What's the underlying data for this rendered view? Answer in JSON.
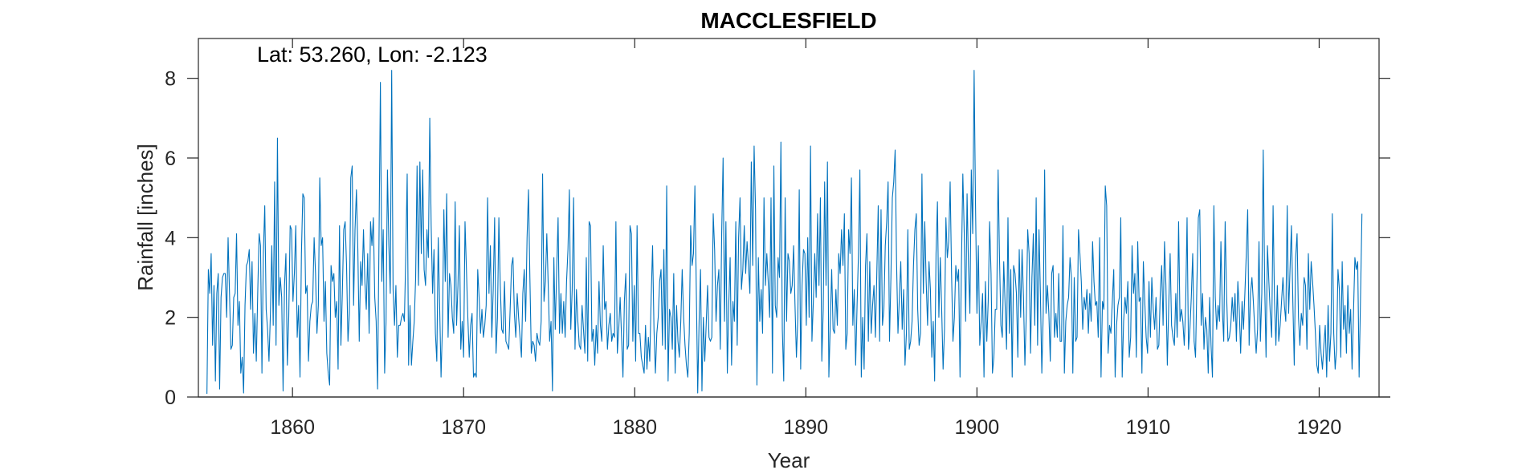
{
  "chart_data": {
    "type": "line",
    "title": "MACCLESFIELD",
    "xlabel": "Year",
    "ylabel": "Rainfall [inches]",
    "annotation": "Lat: 53.260, Lon: -2.123",
    "xlim": [
      1854.5,
      1923.5
    ],
    "ylim": [
      0,
      9
    ],
    "xticks": [
      1860,
      1870,
      1880,
      1890,
      1900,
      1910,
      1920
    ],
    "yticks": [
      0,
      2,
      4,
      6,
      8
    ],
    "grid": false,
    "legend": "none",
    "start_year": 1855,
    "end_year": 1922.5,
    "series": [
      {
        "name": "",
        "color": "#0072BD",
        "values": [
          0.08,
          3.2,
          2.6,
          3.6,
          1.3,
          2.8,
          0.4,
          2.6,
          3.1,
          0.2,
          2.5,
          3.0,
          3.1,
          3.1,
          2.0,
          4.0,
          2.6,
          1.2,
          1.3,
          2.5,
          2.6,
          4.1,
          1.8,
          2.4,
          0.6,
          1.0,
          0.1,
          2.3,
          3.3,
          3.4,
          3.7,
          2.2,
          3.4,
          1.1,
          2.1,
          0.9,
          2.6,
          4.1,
          3.8,
          0.6,
          3.6,
          4.8,
          2.2,
          1.7,
          0.9,
          2.1,
          3.8,
          1.8,
          5.4,
          1.3,
          6.5,
          2.3,
          3.0,
          2.5,
          0.15,
          2.8,
          3.6,
          0.8,
          2.0,
          4.3,
          4.2,
          2.4,
          3.1,
          4.3,
          1.5,
          2.3,
          0.5,
          3.6,
          5.1,
          5.0,
          2.6,
          2.8,
          0.9,
          1.9,
          2.3,
          2.4,
          4.0,
          3.1,
          1.6,
          2.3,
          5.5,
          3.8,
          4.0,
          1.9,
          2.9,
          1.1,
          0.6,
          0.3,
          3.3,
          2.9,
          3.1,
          2.0,
          2.4,
          0.7,
          4.3,
          1.3,
          2.6,
          4.2,
          4.4,
          3.3,
          1.4,
          2.1,
          5.5,
          5.8,
          2.3,
          4.2,
          5.2,
          3.7,
          1.4,
          3.4,
          2.8,
          4.2,
          2.9,
          2.2,
          3.6,
          1.6,
          4.4,
          3.8,
          4.5,
          2.5,
          1.9,
          0.2,
          3.9,
          7.9,
          2.9,
          4.2,
          0.6,
          1.9,
          5.7,
          3.8,
          2.6,
          8.2,
          2.7,
          1.8,
          2.8,
          1.0,
          1.8,
          1.8,
          2.0,
          2.1,
          1.9,
          3.6,
          5.6,
          0.8,
          2.3,
          0.8,
          1.4,
          1.9,
          3.0,
          5.8,
          2.8,
          5.9,
          3.6,
          5.7,
          3.2,
          2.8,
          4.2,
          3.5,
          7.0,
          4.3,
          2.6,
          3.7,
          1.6,
          0.9,
          4.0,
          2.3,
          0.5,
          1.8,
          4.7,
          2.9,
          5.1,
          1.5,
          3.1,
          2.8,
          2.0,
          1.6,
          4.9,
          1.8,
          2.8,
          4.3,
          1.2,
          1.9,
          1.0,
          4.4,
          3.2,
          2.0,
          1.0,
          1.8,
          2.1,
          0.5,
          0.6,
          0.5,
          3.2,
          2.5,
          1.6,
          2.2,
          1.5,
          1.8,
          2.3,
          5.0,
          2.6,
          3.8,
          1.5,
          2.7,
          4.5,
          1.1,
          2.0,
          4.5,
          2.8,
          1.7,
          1.6,
          2.9,
          1.4,
          1.3,
          1.2,
          2.2,
          3.3,
          3.5,
          2.1,
          1.5,
          2.6,
          2.0,
          1.5,
          1.0,
          2.6,
          3.2,
          1.9,
          4.0,
          5.2,
          3.0,
          1.1,
          1.4,
          1.3,
          0.9,
          1.6,
          1.4,
          1.3,
          1.9,
          5.6,
          2.4,
          2.9,
          4.1,
          2.8,
          1.4,
          1.9,
          0.15,
          3.5,
          1.7,
          3.2,
          4.5,
          1.6,
          2.6,
          1.6,
          2.4,
          1.5,
          2.9,
          3.7,
          5.2,
          1.7,
          2.7,
          5.0,
          1.2,
          2.7,
          1.9,
          1.3,
          1.2,
          2.3,
          1.7,
          1.1,
          3.5,
          0.9,
          4.4,
          4.3,
          1.4,
          1.7,
          0.8,
          1.8,
          1.1,
          2.9,
          1.8,
          1.4,
          3.8,
          2.2,
          2.4,
          1.2,
          1.8,
          2.1,
          1.4,
          1.6,
          1.5,
          4.4,
          1.1,
          1.7,
          2.5,
          1.5,
          0.5,
          2.4,
          3.1,
          1.2,
          1.3,
          4.3,
          4.1,
          1.4,
          2.8,
          0.9,
          4.3,
          1.6,
          1.6,
          1.0,
          0.8,
          0.6,
          1.8,
          0.7,
          1.5,
          0.9,
          2.5,
          3.8,
          1.7,
          0.6,
          1.6,
          2.0,
          2.9,
          3.2,
          1.3,
          3.7,
          1.2,
          5.3,
          0.4,
          2.2,
          2.0,
          1.2,
          3.1,
          0.6,
          2.3,
          1.4,
          1.0,
          1.9,
          3.2,
          2.0,
          1.3,
          0.8,
          0.5,
          1.6,
          4.3,
          3.3,
          3.6,
          5.3,
          2.7,
          0.1,
          1.9,
          3.2,
          0.15,
          2.0,
          0.9,
          1.8,
          2.8,
          1.5,
          1.4,
          1.5,
          4.6,
          3.7,
          1.9,
          2.8,
          3.2,
          1.2,
          4.1,
          6.0,
          1.9,
          4.4,
          0.6,
          2.3,
          3.5,
          0.8,
          2.4,
          1.9,
          4.4,
          1.3,
          4.0,
          5.0,
          2.7,
          3.2,
          4.3,
          3.1,
          3.9,
          3.3,
          2.6,
          5.9,
          3.3,
          6.3,
          4.7,
          0.3,
          3.5,
          1.9,
          2.7,
          1.6,
          5.0,
          2.8,
          3.6,
          2.9,
          2.0,
          5.0,
          0.6,
          5.8,
          2.3,
          2.0,
          3.5,
          3.0,
          6.4,
          1.7,
          0.4,
          5.0,
          1.9,
          3.6,
          3.4,
          2.6,
          2.8,
          3.8,
          2.3,
          1.0,
          2.0,
          5.2,
          0.7,
          2.8,
          3.7,
          3.6,
          1.8,
          4.0,
          2.0,
          6.3,
          1.4,
          2.4,
          3.6,
          2.5,
          4.6,
          2.8,
          5.0,
          0.9,
          2.2,
          5.4,
          2.8,
          5.9,
          0.5,
          1.8,
          3.2,
          1.7,
          1.6,
          2.7,
          1.8,
          3.6,
          3.1,
          4.2,
          3.3,
          4.6,
          1.2,
          1.6,
          4.2,
          3.6,
          5.5,
          1.8,
          2.7,
          0.8,
          2.3,
          3.6,
          5.7,
          0.5,
          2.0,
          0.7,
          3.3,
          4.1,
          1.4,
          3.4,
          1.6,
          2.3,
          2.8,
          1.5,
          3.1,
          4.8,
          1.4,
          4.7,
          1.8,
          2.2,
          3.8,
          4.4,
          5.4,
          1.4,
          3.0,
          5.0,
          5.4,
          6.2,
          3.4,
          1.6,
          2.5,
          3.4,
          1.7,
          2.7,
          0.8,
          1.6,
          4.2,
          1.2,
          1.4,
          1.9,
          3.3,
          4.2,
          4.6,
          2.2,
          1.3,
          1.6,
          5.6,
          2.6,
          4.4,
          2.9,
          1.8,
          3.4,
          2.7,
          1.0,
          1.9,
          0.4,
          3.6,
          4.9,
          2.0,
          3.5,
          2.2,
          0.7,
          1.7,
          4.5,
          3.5,
          3.9,
          5.4,
          3.1,
          1.4,
          2.0,
          3.3,
          2.9,
          3.2,
          0.5,
          3.3,
          5.6,
          4.1,
          1.9,
          5.1,
          3.3,
          2.1,
          5.7,
          4.1,
          8.2,
          4.8,
          2.1,
          3.8,
          1.3,
          1.9,
          2.6,
          0.5,
          2.9,
          1.4,
          2.4,
          4.4,
          3.1,
          0.6,
          1.0,
          2.2,
          2.2,
          5.7,
          3.5,
          1.8,
          1.5,
          3.4,
          2.3,
          1.2,
          4.5,
          1.6,
          3.2,
          0.5,
          3.3,
          3.1,
          2.6,
          1.0,
          3.7,
          2.0,
          3.7,
          2.5,
          0.8,
          2.1,
          4.2,
          3.6,
          1.1,
          3.0,
          4.1,
          1.8,
          5.0,
          1.3,
          4.2,
          2.6,
          0.6,
          2.1,
          5.7,
          2.1,
          2.8,
          2.1,
          0.9,
          3.1,
          3.3,
          1.5,
          2.1,
          1.5,
          3.1,
          1.4,
          1.4,
          4.3,
          0.6,
          1.9,
          2.3,
          2.5,
          3.5,
          3.0,
          0.6,
          3.0,
          1.4,
          1.5,
          4.2,
          3.6,
          2.9,
          1.7,
          2.5,
          2.2,
          2.7,
          1.6,
          2.6,
          1.9,
          3.9,
          2.9,
          2.3,
          2.4,
          1.5,
          4.0,
          0.5,
          2.4,
          2.2,
          5.3,
          4.8,
          1.1,
          1.8,
          1.6,
          2.4,
          3.2,
          0.5,
          1.8,
          2.3,
          2.5,
          4.5,
          0.5,
          1.9,
          2.5,
          2.1,
          2.9,
          1.0,
          1.5,
          3.8,
          2.6,
          3.1,
          1.0,
          3.9,
          2.4,
          2.5,
          0.6,
          3.4,
          2.4,
          1.5,
          1.1,
          2.9,
          1.5,
          3.0,
          2.2,
          1.7,
          2.5,
          1.2,
          1.3,
          2.6,
          3.3,
          1.8,
          3.9,
          2.8,
          0.8,
          2.3,
          3.6,
          1.8,
          1.5,
          1.3,
          2.6,
          1.5,
          4.4,
          1.9,
          2.2,
          1.9,
          1.3,
          2.3,
          4.5,
          1.2,
          1.7,
          2.5,
          3.6,
          1.4,
          1.0,
          2.9,
          4.5,
          4.7,
          1.8,
          2.6,
          1.2,
          2.0,
          1.7,
          0.6,
          2.5,
          1.3,
          0.5,
          4.8,
          2.5,
          1.7,
          2.3,
          1.9,
          3.9,
          2.2,
          1.4,
          4.4,
          2.6,
          1.4,
          1.5,
          1.8,
          2.5,
          1.9,
          2.6,
          1.4,
          2.9,
          2.2,
          1.1,
          2.4,
          1.7,
          2.6,
          3.6,
          4.7,
          1.3,
          2.6,
          3.0,
          2.4,
          1.7,
          1.1,
          1.7,
          3.9,
          1.4,
          2.6,
          6.2,
          2.9,
          1.0,
          3.8,
          2.9,
          2.1,
          1.5,
          4.8,
          2.4,
          1.3,
          2.8,
          1.4,
          1.8,
          2.4,
          3.0,
          2.3,
          1.9,
          4.8,
          2.1,
          3.2,
          4.3,
          2.4,
          0.8,
          3.5,
          4.1,
          2.0,
          1.3,
          2.1,
          1.8,
          3.0,
          2.8,
          1.2,
          3.6,
          2.2,
          3.4,
          2.9,
          2.3,
          1.6,
          0.8,
          0.6,
          1.8,
          1.1,
          0.7,
          1.3,
          1.8,
          0.5,
          2.3,
          0.9,
          1.6,
          4.6,
          1.6,
          0.7,
          1.2,
          3.2,
          2.7,
          1.0,
          3.4,
          1.7,
          2.3,
          1.1,
          2.8,
          1.6,
          2.2,
          0.7,
          2.1,
          3.5,
          3.2,
          3.4,
          0.5,
          2.5,
          4.6
        ]
      }
    ]
  }
}
